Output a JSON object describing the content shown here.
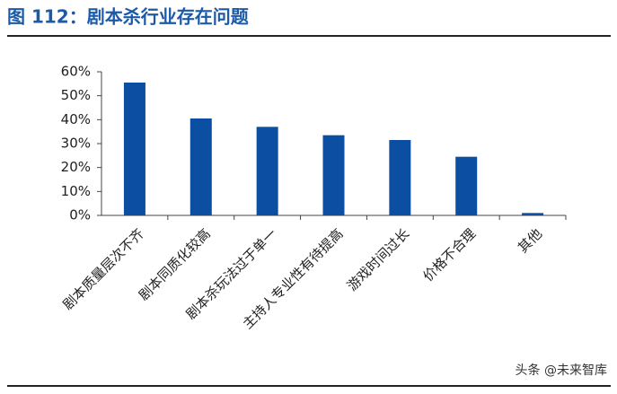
{
  "chart_data": {
    "type": "bar",
    "title": "图 112：剧本杀行业存在问题",
    "categories": [
      "剧本质量层次不齐",
      "剧本同质化较高",
      "剧本杀玩法过于单一",
      "主持人专业性有待提高",
      "游戏时间过长",
      "价格不合理",
      "其他"
    ],
    "values": [
      55.5,
      40.5,
      37,
      33.5,
      31.5,
      24.5,
      1
    ],
    "color": "#0b4ea2",
    "ylim": [
      0,
      60
    ],
    "yticks": [
      {
        "value": 0,
        "label": "0%"
      },
      {
        "value": 10,
        "label": "10%"
      },
      {
        "value": 20,
        "label": "20%"
      },
      {
        "value": 30,
        "label": "30%"
      },
      {
        "value": 40,
        "label": "40%"
      },
      {
        "value": 50,
        "label": "50%"
      },
      {
        "value": 60,
        "label": "60%"
      }
    ],
    "watermark": "头条 @未来智库"
  }
}
